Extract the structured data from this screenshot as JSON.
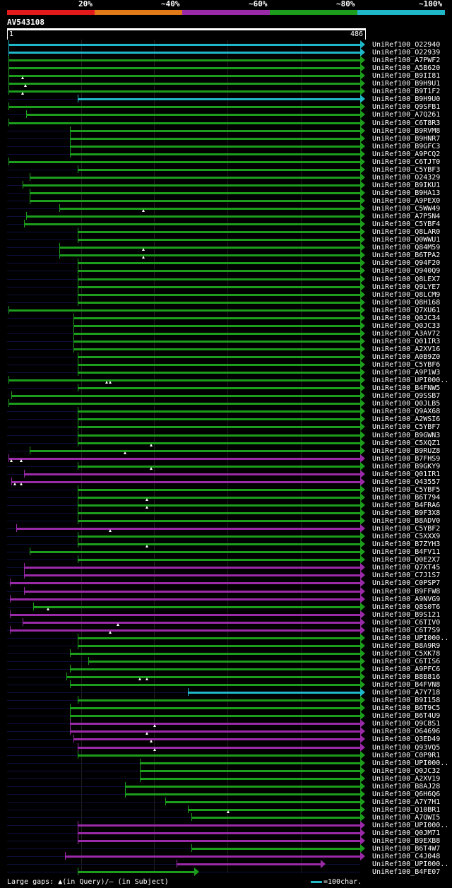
{
  "legend": {
    "colors": [
      "#e31a1c",
      "#e07b18",
      "#9a2aa8",
      "#1c9e1c",
      "#20b8c8"
    ],
    "labels": [
      "20%",
      "~40%",
      "~60%",
      "~80%",
      "~100%"
    ]
  },
  "query": {
    "name": "AV543108",
    "start": "1",
    "end": "486",
    "length": 486
  },
  "footer": {
    "gaps_text": "Large gaps: ▲(in Query)/– (in Subject)",
    "scale_text": "=100char."
  },
  "hits": [
    {
      "label": "UniRef100_O22940",
      "color": "#20b8c8",
      "s": 1,
      "e": 486,
      "gaps": []
    },
    {
      "label": "UniRef100_O22939",
      "color": "#20b8c8",
      "s": 1,
      "e": 486,
      "gaps": []
    },
    {
      "label": "UniRef100_A7PWF2",
      "color": "#1c9e1c",
      "s": 1,
      "e": 486,
      "gaps": []
    },
    {
      "label": "UniRef100_A5B620",
      "color": "#1c9e1c",
      "s": 1,
      "e": 486,
      "gaps": []
    },
    {
      "label": "UniRef100_B9II81",
      "color": "#1c9e1c",
      "s": 1,
      "e": 486,
      "gaps": [
        20
      ]
    },
    {
      "label": "UniRef100_B9H9U1",
      "color": "#1c9e1c",
      "s": 1,
      "e": 486,
      "gaps": [
        24
      ]
    },
    {
      "label": "UniRef100_B9T1F2",
      "color": "#1c9e1c",
      "s": 1,
      "e": 486,
      "gaps": [
        20
      ]
    },
    {
      "label": "UniRef100_B9H9U0",
      "color": "#20b8c8",
      "s": 95,
      "e": 486,
      "gaps": []
    },
    {
      "label": "UniRef100_Q9SFB1",
      "color": "#1c9e1c",
      "s": 1,
      "e": 486,
      "gaps": []
    },
    {
      "label": "UniRef100_A7Q261",
      "color": "#1c9e1c",
      "s": 25,
      "e": 486,
      "gaps": []
    },
    {
      "label": "UniRef100_C6T8R3",
      "color": "#1c9e1c",
      "s": 1,
      "e": 486,
      "gaps": []
    },
    {
      "label": "UniRef100_B9RVM8",
      "color": "#1c9e1c",
      "s": 85,
      "e": 486,
      "gaps": []
    },
    {
      "label": "UniRef100_B9HNR7",
      "color": "#1c9e1c",
      "s": 85,
      "e": 486,
      "gaps": []
    },
    {
      "label": "UniRef100_B9GFC3",
      "color": "#1c9e1c",
      "s": 85,
      "e": 486,
      "gaps": []
    },
    {
      "label": "UniRef100_A9PCQ2",
      "color": "#1c9e1c",
      "s": 85,
      "e": 486,
      "gaps": []
    },
    {
      "label": "UniRef100_C6TJT0",
      "color": "#1c9e1c",
      "s": 1,
      "e": 486,
      "gaps": []
    },
    {
      "label": "UniRef100_C5YBF3",
      "color": "#1c9e1c",
      "s": 95,
      "e": 486,
      "gaps": []
    },
    {
      "label": "UniRef100_O24329",
      "color": "#1c9e1c",
      "s": 30,
      "e": 486,
      "gaps": []
    },
    {
      "label": "UniRef100_B9IKU1",
      "color": "#1c9e1c",
      "s": 20,
      "e": 486,
      "gaps": []
    },
    {
      "label": "UniRef100_B9HA13",
      "color": "#1c9e1c",
      "s": 30,
      "e": 486,
      "gaps": []
    },
    {
      "label": "UniRef100_A9PEX0",
      "color": "#1c9e1c",
      "s": 30,
      "e": 486,
      "gaps": []
    },
    {
      "label": "UniRef100_C5WW49",
      "color": "#1c9e1c",
      "s": 70,
      "e": 486,
      "gaps": [
        185
      ]
    },
    {
      "label": "UniRef100_A7P5N4",
      "color": "#1c9e1c",
      "s": 25,
      "e": 486,
      "gaps": []
    },
    {
      "label": "UniRef100_C5YBF4",
      "color": "#1c9e1c",
      "s": 22,
      "e": 486,
      "gaps": []
    },
    {
      "label": "UniRef100_Q8LAR0",
      "color": "#1c9e1c",
      "s": 95,
      "e": 486,
      "gaps": []
    },
    {
      "label": "UniRef100_Q0WWU1",
      "color": "#1c9e1c",
      "s": 95,
      "e": 486,
      "gaps": []
    },
    {
      "label": "UniRef100_Q84M59",
      "color": "#1c9e1c",
      "s": 70,
      "e": 486,
      "gaps": [
        185
      ]
    },
    {
      "label": "UniRef100_B6TPA2",
      "color": "#1c9e1c",
      "s": 70,
      "e": 486,
      "gaps": [
        185
      ]
    },
    {
      "label": "UniRef100_Q94F20",
      "color": "#1c9e1c",
      "s": 95,
      "e": 486,
      "gaps": []
    },
    {
      "label": "UniRef100_Q940Q9",
      "color": "#1c9e1c",
      "s": 95,
      "e": 486,
      "gaps": []
    },
    {
      "label": "UniRef100_Q8LEX7",
      "color": "#1c9e1c",
      "s": 95,
      "e": 486,
      "gaps": []
    },
    {
      "label": "UniRef100_Q9LYE7",
      "color": "#1c9e1c",
      "s": 95,
      "e": 486,
      "gaps": []
    },
    {
      "label": "UniRef100_Q8LCM9",
      "color": "#1c9e1c",
      "s": 95,
      "e": 486,
      "gaps": []
    },
    {
      "label": "UniRef100_Q8H168",
      "color": "#1c9e1c",
      "s": 95,
      "e": 486,
      "gaps": []
    },
    {
      "label": "UniRef100_Q7XU61",
      "color": "#1c9e1c",
      "s": 1,
      "e": 486,
      "gaps": []
    },
    {
      "label": "UniRef100_Q0JC34",
      "color": "#1c9e1c",
      "s": 90,
      "e": 486,
      "gaps": []
    },
    {
      "label": "UniRef100_Q0JC33",
      "color": "#1c9e1c",
      "s": 90,
      "e": 486,
      "gaps": []
    },
    {
      "label": "UniRef100_A3AV72",
      "color": "#1c9e1c",
      "s": 90,
      "e": 486,
      "gaps": []
    },
    {
      "label": "UniRef100_Q01IR3",
      "color": "#1c9e1c",
      "s": 90,
      "e": 486,
      "gaps": []
    },
    {
      "label": "UniRef100_A2XV16",
      "color": "#1c9e1c",
      "s": 90,
      "e": 486,
      "gaps": []
    },
    {
      "label": "UniRef100_A0B9Z0",
      "color": "#1c9e1c",
      "s": 95,
      "e": 486,
      "gaps": []
    },
    {
      "label": "UniRef100_C5YBF6",
      "color": "#1c9e1c",
      "s": 95,
      "e": 486,
      "gaps": []
    },
    {
      "label": "UniRef100_A9P1W3",
      "color": "#1c9e1c",
      "s": 95,
      "e": 486,
      "gaps": []
    },
    {
      "label": "UniRef100_UPI000..",
      "color": "#1c9e1c",
      "s": 1,
      "e": 486,
      "gaps": [
        135,
        140
      ]
    },
    {
      "label": "UniRef100_B4FNW5",
      "color": "#1c9e1c",
      "s": 95,
      "e": 486,
      "gaps": []
    },
    {
      "label": "UniRef100_Q9SSB7",
      "color": "#1c9e1c",
      "s": 5,
      "e": 486,
      "gaps": []
    },
    {
      "label": "UniRef100_Q0JLB5",
      "color": "#1c9e1c",
      "s": 1,
      "e": 486,
      "gaps": []
    },
    {
      "label": "UniRef100_Q9AX68",
      "color": "#1c9e1c",
      "s": 95,
      "e": 486,
      "gaps": []
    },
    {
      "label": "UniRef100_A2WSI6",
      "color": "#1c9e1c",
      "s": 95,
      "e": 486,
      "gaps": []
    },
    {
      "label": "UniRef100_C5YBF7",
      "color": "#1c9e1c",
      "s": 95,
      "e": 486,
      "gaps": []
    },
    {
      "label": "UniRef100_B9GWN3",
      "color": "#1c9e1c",
      "s": 95,
      "e": 486,
      "gaps": []
    },
    {
      "label": "UniRef100_C5XQZ1",
      "color": "#1c9e1c",
      "s": 95,
      "e": 486,
      "gaps": [
        195
      ]
    },
    {
      "label": "UniRef100_B9RUZ8",
      "color": "#1c9e1c",
      "s": 30,
      "e": 486,
      "gaps": [
        160
      ]
    },
    {
      "label": "UniRef100_B7FHS9",
      "color": "#9a2aa8",
      "s": 1,
      "e": 486,
      "gaps": [
        5,
        18
      ]
    },
    {
      "label": "UniRef100_B9GKY9",
      "color": "#1c9e1c",
      "s": 95,
      "e": 486,
      "gaps": [
        195
      ]
    },
    {
      "label": "UniRef100_Q01IR1",
      "color": "#9a2aa8",
      "s": 22,
      "e": 486,
      "gaps": []
    },
    {
      "label": "UniRef100_Q43557",
      "color": "#9a2aa8",
      "s": 5,
      "e": 486,
      "gaps": [
        10,
        18
      ]
    },
    {
      "label": "UniRef100_C5YBF5",
      "color": "#1c9e1c",
      "s": 95,
      "e": 486,
      "gaps": []
    },
    {
      "label": "UniRef100_B6T794",
      "color": "#1c9e1c",
      "s": 95,
      "e": 486,
      "gaps": [
        190
      ]
    },
    {
      "label": "UniRef100_B4FRA6",
      "color": "#1c9e1c",
      "s": 95,
      "e": 486,
      "gaps": [
        190
      ]
    },
    {
      "label": "UniRef100_B9F3X8",
      "color": "#1c9e1c",
      "s": 95,
      "e": 486,
      "gaps": []
    },
    {
      "label": "UniRef100_B8ADV0",
      "color": "#1c9e1c",
      "s": 95,
      "e": 486,
      "gaps": []
    },
    {
      "label": "UniRef100_C5YBF2",
      "color": "#9a2aa8",
      "s": 12,
      "e": 486,
      "gaps": [
        140
      ]
    },
    {
      "label": "UniRef100_C5XXX9",
      "color": "#1c9e1c",
      "s": 95,
      "e": 486,
      "gaps": []
    },
    {
      "label": "UniRef100_B7ZYH3",
      "color": "#1c9e1c",
      "s": 95,
      "e": 486,
      "gaps": [
        190
      ]
    },
    {
      "label": "UniRef100_B4FV11",
      "color": "#1c9e1c",
      "s": 30,
      "e": 486,
      "gaps": []
    },
    {
      "label": "UniRef100_Q0E2X7",
      "color": "#1c9e1c",
      "s": 95,
      "e": 486,
      "gaps": []
    },
    {
      "label": "UniRef100_Q7XT45",
      "color": "#9a2aa8",
      "s": 22,
      "e": 486,
      "gaps": []
    },
    {
      "label": "UniRef100_C7J1S7",
      "color": "#9a2aa8",
      "s": 22,
      "e": 486,
      "gaps": []
    },
    {
      "label": "UniRef100_C0PSP7",
      "color": "#9a2aa8",
      "s": 3,
      "e": 486,
      "gaps": []
    },
    {
      "label": "UniRef100_B9FFW8",
      "color": "#9a2aa8",
      "s": 22,
      "e": 486,
      "gaps": []
    },
    {
      "label": "UniRef100_A9NVG9",
      "color": "#9a2aa8",
      "s": 3,
      "e": 486,
      "gaps": []
    },
    {
      "label": "UniRef100_Q8S0T6",
      "color": "#1c9e1c",
      "s": 35,
      "e": 486,
      "gaps": [
        55
      ]
    },
    {
      "label": "UniRef100_B9S121",
      "color": "#9a2aa8",
      "s": 3,
      "e": 486,
      "gaps": []
    },
    {
      "label": "UniRef100_C6TIV0",
      "color": "#9a2aa8",
      "s": 20,
      "e": 486,
      "gaps": [
        150
      ]
    },
    {
      "label": "UniRef100_C6T7S9",
      "color": "#9a2aa8",
      "s": 3,
      "e": 486,
      "gaps": [
        140
      ]
    },
    {
      "label": "UniRef100_UPI000..",
      "color": "#1c9e1c",
      "s": 95,
      "e": 486,
      "gaps": []
    },
    {
      "label": "UniRef100_B8A9R9",
      "color": "#1c9e1c",
      "s": 95,
      "e": 486,
      "gaps": []
    },
    {
      "label": "UniRef100_C5XK78",
      "color": "#1c9e1c",
      "s": 85,
      "e": 486,
      "gaps": []
    },
    {
      "label": "UniRef100_C6TIS6",
      "color": "#1c9e1c",
      "s": 110,
      "e": 486,
      "gaps": []
    },
    {
      "label": "UniRef100_A9PFC6",
      "color": "#1c9e1c",
      "s": 85,
      "e": 486,
      "gaps": []
    },
    {
      "label": "UniRef100_B8B816",
      "color": "#1c9e1c",
      "s": 80,
      "e": 486,
      "gaps": [
        180,
        190
      ]
    },
    {
      "label": "UniRef100_B4FVN8",
      "color": "#1c9e1c",
      "s": 85,
      "e": 486,
      "gaps": []
    },
    {
      "label": "UniRef100_A7Y718",
      "color": "#20b8c8",
      "s": 245,
      "e": 486,
      "gaps": []
    },
    {
      "label": "UniRef100_B9I158",
      "color": "#1c9e1c",
      "s": 95,
      "e": 486,
      "gaps": []
    },
    {
      "label": "UniRef100_B6T9C5",
      "color": "#1c9e1c",
      "s": 85,
      "e": 486,
      "gaps": []
    },
    {
      "label": "UniRef100_B6T4U9",
      "color": "#1c9e1c",
      "s": 85,
      "e": 486,
      "gaps": []
    },
    {
      "label": "UniRef100_Q9C8S1",
      "color": "#9a2aa8",
      "s": 85,
      "e": 486,
      "gaps": [
        200
      ]
    },
    {
      "label": "UniRef100_O64696",
      "color": "#9a2aa8",
      "s": 85,
      "e": 486,
      "gaps": [
        190
      ]
    },
    {
      "label": "UniRef100_Q3ED49",
      "color": "#9a2aa8",
      "s": 90,
      "e": 486,
      "gaps": [
        195
      ]
    },
    {
      "label": "UniRef100_Q93VQ5",
      "color": "#9a2aa8",
      "s": 95,
      "e": 486,
      "gaps": [
        200
      ]
    },
    {
      "label": "UniRef100_C0P9R1",
      "color": "#1c9e1c",
      "s": 95,
      "e": 486,
      "gaps": []
    },
    {
      "label": "UniRef100_UPI000..",
      "color": "#1c9e1c",
      "s": 180,
      "e": 486,
      "gaps": []
    },
    {
      "label": "UniRef100_Q0JC32",
      "color": "#1c9e1c",
      "s": 180,
      "e": 486,
      "gaps": []
    },
    {
      "label": "UniRef100_A2XV19",
      "color": "#1c9e1c",
      "s": 180,
      "e": 486,
      "gaps": []
    },
    {
      "label": "UniRef100_B8AJ28",
      "color": "#1c9e1c",
      "s": 160,
      "e": 486,
      "gaps": []
    },
    {
      "label": "UniRef100_Q6H6Q6",
      "color": "#1c9e1c",
      "s": 160,
      "e": 486,
      "gaps": []
    },
    {
      "label": "UniRef100_A7Y7H1",
      "color": "#1c9e1c",
      "s": 215,
      "e": 486,
      "gaps": []
    },
    {
      "label": "UniRef100_Q10BR1",
      "color": "#1c9e1c",
      "s": 245,
      "e": 486,
      "gaps": [
        300
      ]
    },
    {
      "label": "UniRef100_A7QWI5",
      "color": "#1c9e1c",
      "s": 250,
      "e": 486,
      "gaps": []
    },
    {
      "label": "UniRef100_UPI000..",
      "color": "#9a2aa8",
      "s": 95,
      "e": 486,
      "gaps": []
    },
    {
      "label": "UniRef100_Q0JM71",
      "color": "#9a2aa8",
      "s": 95,
      "e": 486,
      "gaps": []
    },
    {
      "label": "UniRef100_B9EXB8",
      "color": "#9a2aa8",
      "s": 95,
      "e": 486,
      "gaps": []
    },
    {
      "label": "UniRef100_B6T4W7",
      "color": "#1c9e1c",
      "s": 250,
      "e": 486,
      "gaps": []
    },
    {
      "label": "UniRef100_C4J048",
      "color": "#9a2aa8",
      "s": 78,
      "e": 486,
      "gaps": []
    },
    {
      "label": "UniRef100_UPI000..",
      "color": "#9a2aa8",
      "s": 230,
      "e": 432,
      "gaps": []
    },
    {
      "label": "UniRef100_B4FE07",
      "color": "#1c9e1c",
      "s": 95,
      "e": 260,
      "gaps": []
    }
  ]
}
